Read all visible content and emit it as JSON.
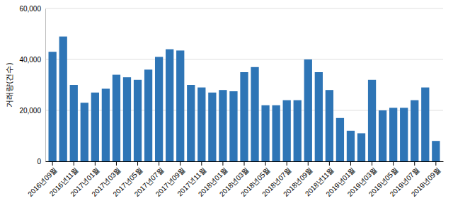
{
  "chart_data": {
    "type": "bar",
    "ylabel": "거래량(건수)",
    "categories": [
      "2016년09월",
      null,
      "2016년11월",
      null,
      "2017년01월",
      null,
      "2017년03월",
      null,
      "2017년05월",
      null,
      "2017년07월",
      null,
      "2017년09월",
      null,
      "2017년11월",
      null,
      "2018년01월",
      null,
      "2018년03월",
      null,
      "2018년05월",
      null,
      "2018년07월",
      null,
      "2018년09월",
      null,
      "2018년11월",
      null,
      "2019년01월",
      null,
      "2019년03월",
      null,
      "2019년05월",
      null,
      "2019년07월",
      null,
      "2019년09월"
    ],
    "values": [
      43000,
      49000,
      30000,
      23000,
      27000,
      28500,
      34000,
      33000,
      32000,
      36000,
      41000,
      44000,
      43500,
      30000,
      29000,
      27000,
      28000,
      27500,
      35000,
      37000,
      22000,
      22000,
      24000,
      24000,
      40000,
      35000,
      28000,
      17000,
      12000,
      11000,
      32000,
      20000,
      21000,
      21000,
      24000,
      29000,
      8000
    ],
    "color": "#2e75b6",
    "ylim": [
      0,
      60000
    ],
    "yticks": [
      {
        "value": 0,
        "label": "0"
      },
      {
        "value": 20000,
        "label": "20,000"
      },
      {
        "value": 40000,
        "label": "40,000"
      },
      {
        "value": 60000,
        "label": "60,000"
      }
    ],
    "grid": true
  }
}
